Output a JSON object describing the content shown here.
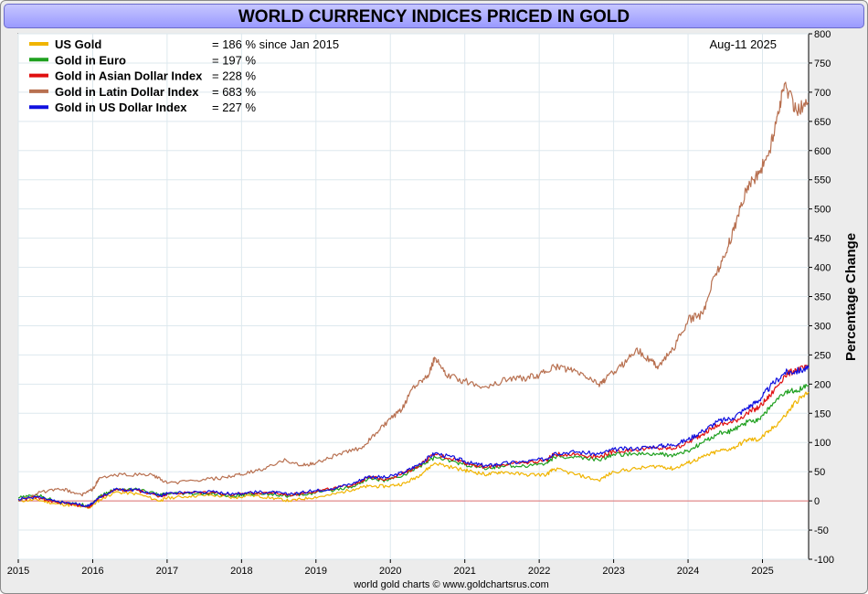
{
  "title": "WORLD CURRENCY INDICES PRICED IN GOLD",
  "footer": "world gold charts © www.goldchartsrus.com",
  "chart_data": {
    "type": "line",
    "title": "WORLD CURRENCY INDICES PRICED IN GOLD",
    "date_label": "Aug-11  2025",
    "ylabel": "Percentage Change",
    "xlabel": "",
    "ylim": [
      -100,
      800
    ],
    "yticks": [
      -100,
      -50,
      0,
      50,
      100,
      150,
      200,
      250,
      300,
      350,
      400,
      450,
      500,
      550,
      600,
      650,
      700,
      750,
      800
    ],
    "xlim": [
      2015.0,
      2025.62
    ],
    "xticks": [
      "2015",
      "2016",
      "2017",
      "2018",
      "2019",
      "2020",
      "2021",
      "2022",
      "2023",
      "2024",
      "2025"
    ],
    "grid": true,
    "legend_position": "top-left",
    "zero_line_color": "#e07070",
    "series": [
      {
        "name": "US Gold",
        "legend_value": "= 186 % since Jan 2015",
        "color": "#f0b400",
        "x": [
          2015.0,
          2015.25,
          2015.5,
          2015.75,
          2015.95,
          2016.1,
          2016.3,
          2016.6,
          2016.9,
          2017.0,
          2017.3,
          2017.6,
          2017.9,
          2018.1,
          2018.4,
          2018.65,
          2018.9,
          2019.2,
          2019.5,
          2019.7,
          2019.95,
          2020.2,
          2020.4,
          2020.6,
          2020.9,
          2021.1,
          2021.3,
          2021.5,
          2021.8,
          2022.1,
          2022.2,
          2022.5,
          2022.8,
          2023.0,
          2023.3,
          2023.6,
          2023.8,
          2024.0,
          2024.2,
          2024.4,
          2024.6,
          2024.8,
          2024.95,
          2025.1,
          2025.3,
          2025.45,
          2025.62
        ],
        "values": [
          0,
          2,
          -5,
          -8,
          -12,
          2,
          15,
          12,
          0,
          5,
          8,
          10,
          5,
          10,
          5,
          0,
          5,
          10,
          20,
          25,
          25,
          30,
          45,
          65,
          55,
          50,
          45,
          50,
          45,
          45,
          55,
          45,
          35,
          50,
          55,
          60,
          55,
          65,
          75,
          85,
          90,
          105,
          105,
          120,
          145,
          170,
          186
        ]
      },
      {
        "name": "Gold in Euro",
        "legend_value": "= 197 %",
        "color": "#1fa01f",
        "x": [
          2015.0,
          2015.25,
          2015.5,
          2015.75,
          2015.95,
          2016.1,
          2016.3,
          2016.6,
          2016.9,
          2017.0,
          2017.3,
          2017.6,
          2017.9,
          2018.1,
          2018.4,
          2018.65,
          2018.9,
          2019.2,
          2019.5,
          2019.7,
          2019.95,
          2020.2,
          2020.4,
          2020.6,
          2020.9,
          2021.1,
          2021.3,
          2021.5,
          2021.8,
          2022.1,
          2022.2,
          2022.5,
          2022.8,
          2023.0,
          2023.3,
          2023.6,
          2023.8,
          2024.0,
          2024.2,
          2024.4,
          2024.6,
          2024.8,
          2024.95,
          2025.1,
          2025.3,
          2025.45,
          2025.62
        ],
        "values": [
          5,
          10,
          0,
          -5,
          -8,
          8,
          20,
          20,
          10,
          12,
          12,
          12,
          8,
          12,
          12,
          8,
          12,
          18,
          25,
          38,
          35,
          45,
          60,
          75,
          65,
          60,
          55,
          60,
          60,
          65,
          75,
          75,
          70,
          80,
          80,
          80,
          78,
          85,
          100,
          115,
          120,
          135,
          140,
          160,
          185,
          190,
          197
        ]
      },
      {
        "name": "Gold in Asian Dollar Index",
        "legend_value": "= 228 %",
        "color": "#e01010",
        "x": [
          2015.0,
          2015.25,
          2015.5,
          2015.75,
          2015.95,
          2016.1,
          2016.3,
          2016.6,
          2016.9,
          2017.0,
          2017.3,
          2017.6,
          2017.9,
          2018.1,
          2018.4,
          2018.65,
          2018.9,
          2019.2,
          2019.5,
          2019.7,
          2019.95,
          2020.2,
          2020.4,
          2020.6,
          2020.9,
          2021.1,
          2021.3,
          2021.5,
          2021.8,
          2022.1,
          2022.2,
          2022.5,
          2022.8,
          2023.0,
          2023.3,
          2023.6,
          2023.8,
          2024.0,
          2024.2,
          2024.4,
          2024.6,
          2024.8,
          2024.95,
          2025.1,
          2025.3,
          2025.45,
          2025.62
        ],
        "values": [
          2,
          6,
          -2,
          -6,
          -10,
          6,
          18,
          18,
          8,
          12,
          14,
          15,
          10,
          14,
          14,
          10,
          15,
          20,
          28,
          40,
          38,
          48,
          62,
          80,
          70,
          62,
          58,
          62,
          65,
          70,
          80,
          80,
          75,
          85,
          88,
          90,
          90,
          100,
          115,
          130,
          135,
          150,
          160,
          180,
          215,
          225,
          228
        ]
      },
      {
        "name": "Gold in Latin Dollar Index",
        "legend_value": "= 683 %",
        "color": "#b87050",
        "x": [
          2015.0,
          2015.3,
          2015.6,
          2015.85,
          2016.0,
          2016.1,
          2016.4,
          2016.8,
          2017.0,
          2017.4,
          2017.8,
          2018.0,
          2018.3,
          2018.6,
          2018.8,
          2019.0,
          2019.3,
          2019.6,
          2019.8,
          2020.0,
          2020.15,
          2020.3,
          2020.5,
          2020.6,
          2020.75,
          2021.0,
          2021.3,
          2021.6,
          2021.8,
          2022.0,
          2022.2,
          2022.4,
          2022.6,
          2022.8,
          2022.9,
          2023.1,
          2023.3,
          2023.5,
          2023.6,
          2023.8,
          2024.0,
          2024.2,
          2024.35,
          2024.5,
          2024.65,
          2024.8,
          2024.95,
          2025.1,
          2025.2,
          2025.3,
          2025.45,
          2025.62
        ],
        "values": [
          0,
          15,
          20,
          10,
          20,
          40,
          45,
          45,
          30,
          35,
          40,
          45,
          55,
          70,
          60,
          65,
          80,
          90,
          115,
          140,
          155,
          195,
          215,
          245,
          215,
          205,
          195,
          210,
          210,
          215,
          230,
          225,
          215,
          200,
          210,
          230,
          260,
          240,
          230,
          260,
          310,
          320,
          385,
          420,
          480,
          540,
          560,
          600,
          660,
          715,
          670,
          683
        ]
      },
      {
        "name": "Gold in US Dollar Index",
        "legend_value": "= 227 %",
        "color": "#1010e0",
        "x": [
          2015.0,
          2015.25,
          2015.5,
          2015.75,
          2015.95,
          2016.1,
          2016.3,
          2016.6,
          2016.9,
          2017.0,
          2017.3,
          2017.6,
          2017.9,
          2018.1,
          2018.4,
          2018.65,
          2018.9,
          2019.2,
          2019.5,
          2019.7,
          2019.95,
          2020.2,
          2020.4,
          2020.6,
          2020.9,
          2021.1,
          2021.3,
          2021.5,
          2021.8,
          2022.1,
          2022.2,
          2022.5,
          2022.8,
          2023.0,
          2023.3,
          2023.6,
          2023.8,
          2024.0,
          2024.2,
          2024.4,
          2024.6,
          2024.8,
          2024.95,
          2025.1,
          2025.3,
          2025.45,
          2025.62
        ],
        "values": [
          3,
          7,
          -1,
          -5,
          -9,
          7,
          19,
          19,
          9,
          13,
          15,
          16,
          11,
          15,
          15,
          11,
          16,
          21,
          30,
          42,
          40,
          50,
          64,
          82,
          72,
          64,
          60,
          64,
          67,
          72,
          82,
          84,
          80,
          88,
          90,
          94,
          96,
          105,
          120,
          136,
          142,
          160,
          172,
          195,
          220,
          222,
          227
        ]
      }
    ]
  }
}
